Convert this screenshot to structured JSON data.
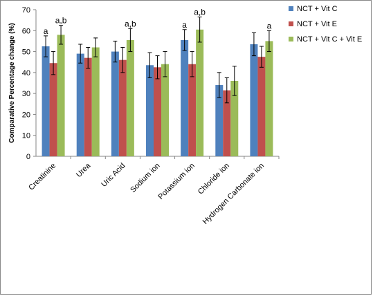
{
  "chart_data": {
    "type": "bar",
    "title": "",
    "xlabel": "",
    "ylabel": "Comparative Percentage change (%)",
    "ylim": [
      0,
      70
    ],
    "yticks": [
      0,
      10,
      20,
      30,
      40,
      50,
      60,
      70
    ],
    "grid": false,
    "legend_position": "top-right",
    "categories": [
      "Creatinine",
      "Urea",
      "Uric Acid",
      "Sodium ion",
      "Potassium ion",
      "Chloride ion",
      "Hydrogen Carbonate ion"
    ],
    "series": [
      {
        "name": "NCT + Vit C",
        "color": "#4f81bd",
        "values": [
          52.5,
          49,
          50,
          43.5,
          55.5,
          34,
          53.5
        ],
        "errors": [
          5,
          4.5,
          5,
          6,
          5,
          6,
          5.5
        ],
        "annotations": [
          "a",
          "",
          "",
          "",
          "a",
          "",
          ""
        ]
      },
      {
        "name": "NCT + Vit E",
        "color": "#c0504d",
        "values": [
          44.5,
          47,
          46,
          42.5,
          44,
          31.5,
          47.5
        ],
        "errors": [
          5.5,
          5,
          6,
          5.5,
          6,
          6,
          5
        ],
        "annotations": [
          "",
          "",
          "",
          "",
          "",
          "",
          ""
        ]
      },
      {
        "name": "NCT + Vit C + Vit E",
        "color": "#9bbb59",
        "values": [
          58,
          52,
          55.5,
          44,
          60.5,
          36,
          55
        ],
        "errors": [
          4.5,
          4.5,
          5.5,
          6,
          6,
          7,
          5
        ],
        "annotations": [
          "a,b",
          "",
          "a,b",
          "",
          "a,b",
          "",
          "a"
        ]
      }
    ]
  }
}
